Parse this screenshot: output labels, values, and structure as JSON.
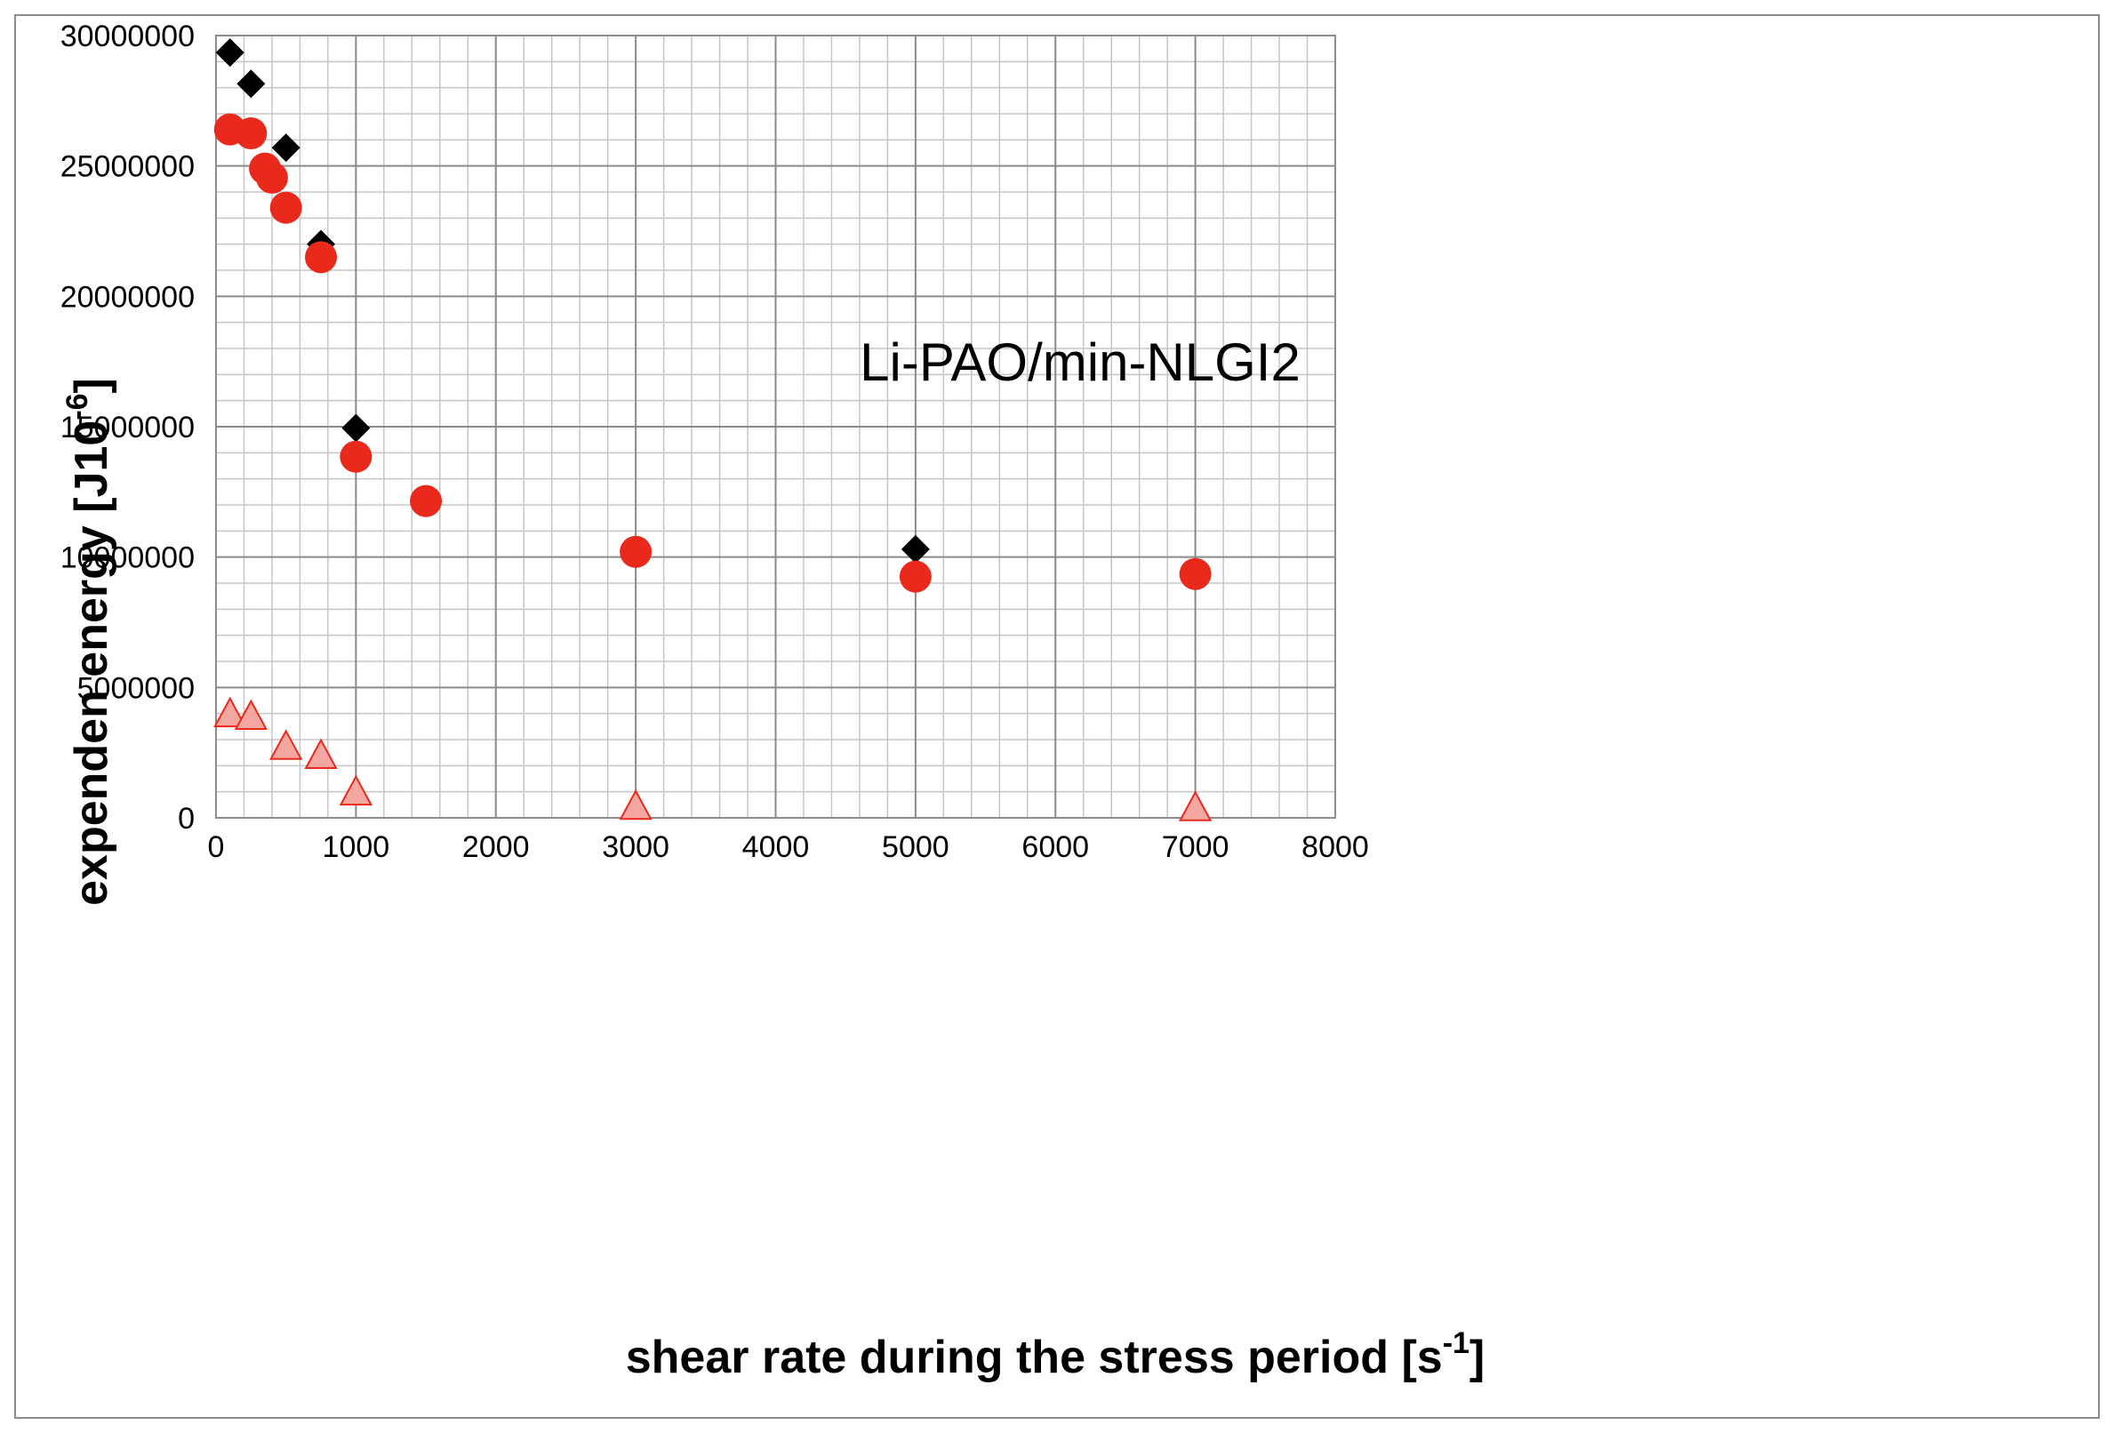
{
  "chart_data": {
    "type": "scatter",
    "title": "",
    "annotation": "Li-PAO/min-NLGI2",
    "xlabel": {
      "text": "shear rate during the stress period [s",
      "sup": "-1",
      "close": "]"
    },
    "ylabel": {
      "text": "expenden energy [J10",
      "sup": "-6",
      "close": "]"
    },
    "xlim": [
      0,
      8000
    ],
    "ylim": [
      0,
      30000000
    ],
    "xticks": [
      0,
      1000,
      2000,
      3000,
      4000,
      5000,
      6000,
      7000,
      8000
    ],
    "xtick_labels": [
      "0",
      "1000",
      "2000",
      "3000",
      "4000",
      "5000",
      "6000",
      "7000",
      "8000"
    ],
    "yticks": [
      0,
      5000000,
      10000000,
      15000000,
      20000000,
      25000000,
      30000000
    ],
    "ytick_labels": [
      "0",
      "5000000",
      "10000000",
      "15000000",
      "20000000",
      "25000000",
      "30000000"
    ],
    "grid": true,
    "series": [
      {
        "name": "black diamonds",
        "marker": "diamond",
        "color": "#000000",
        "x": [
          100,
          250,
          500,
          750,
          1000,
          5000
        ],
        "y": [
          29350000,
          28150000,
          25700000,
          22000000,
          14950000,
          10300000
        ]
      },
      {
        "name": "red circles",
        "marker": "circle",
        "color": "#e8291c",
        "x": [
          100,
          250,
          350,
          400,
          500,
          750,
          1000,
          1500,
          3000,
          5000,
          7000
        ],
        "y": [
          26400000,
          26250000,
          24900000,
          24550000,
          23400000,
          21500000,
          13850000,
          12150000,
          10200000,
          9250000,
          9350000
        ]
      },
      {
        "name": "pink triangles",
        "marker": "triangle",
        "color": "#f4a7a0",
        "stroke": "#e8291c",
        "x": [
          100,
          250,
          500,
          750,
          1000,
          3000,
          7000
        ],
        "y": [
          4000000,
          3900000,
          2750000,
          2400000,
          1000000,
          450000,
          400000
        ]
      }
    ]
  }
}
